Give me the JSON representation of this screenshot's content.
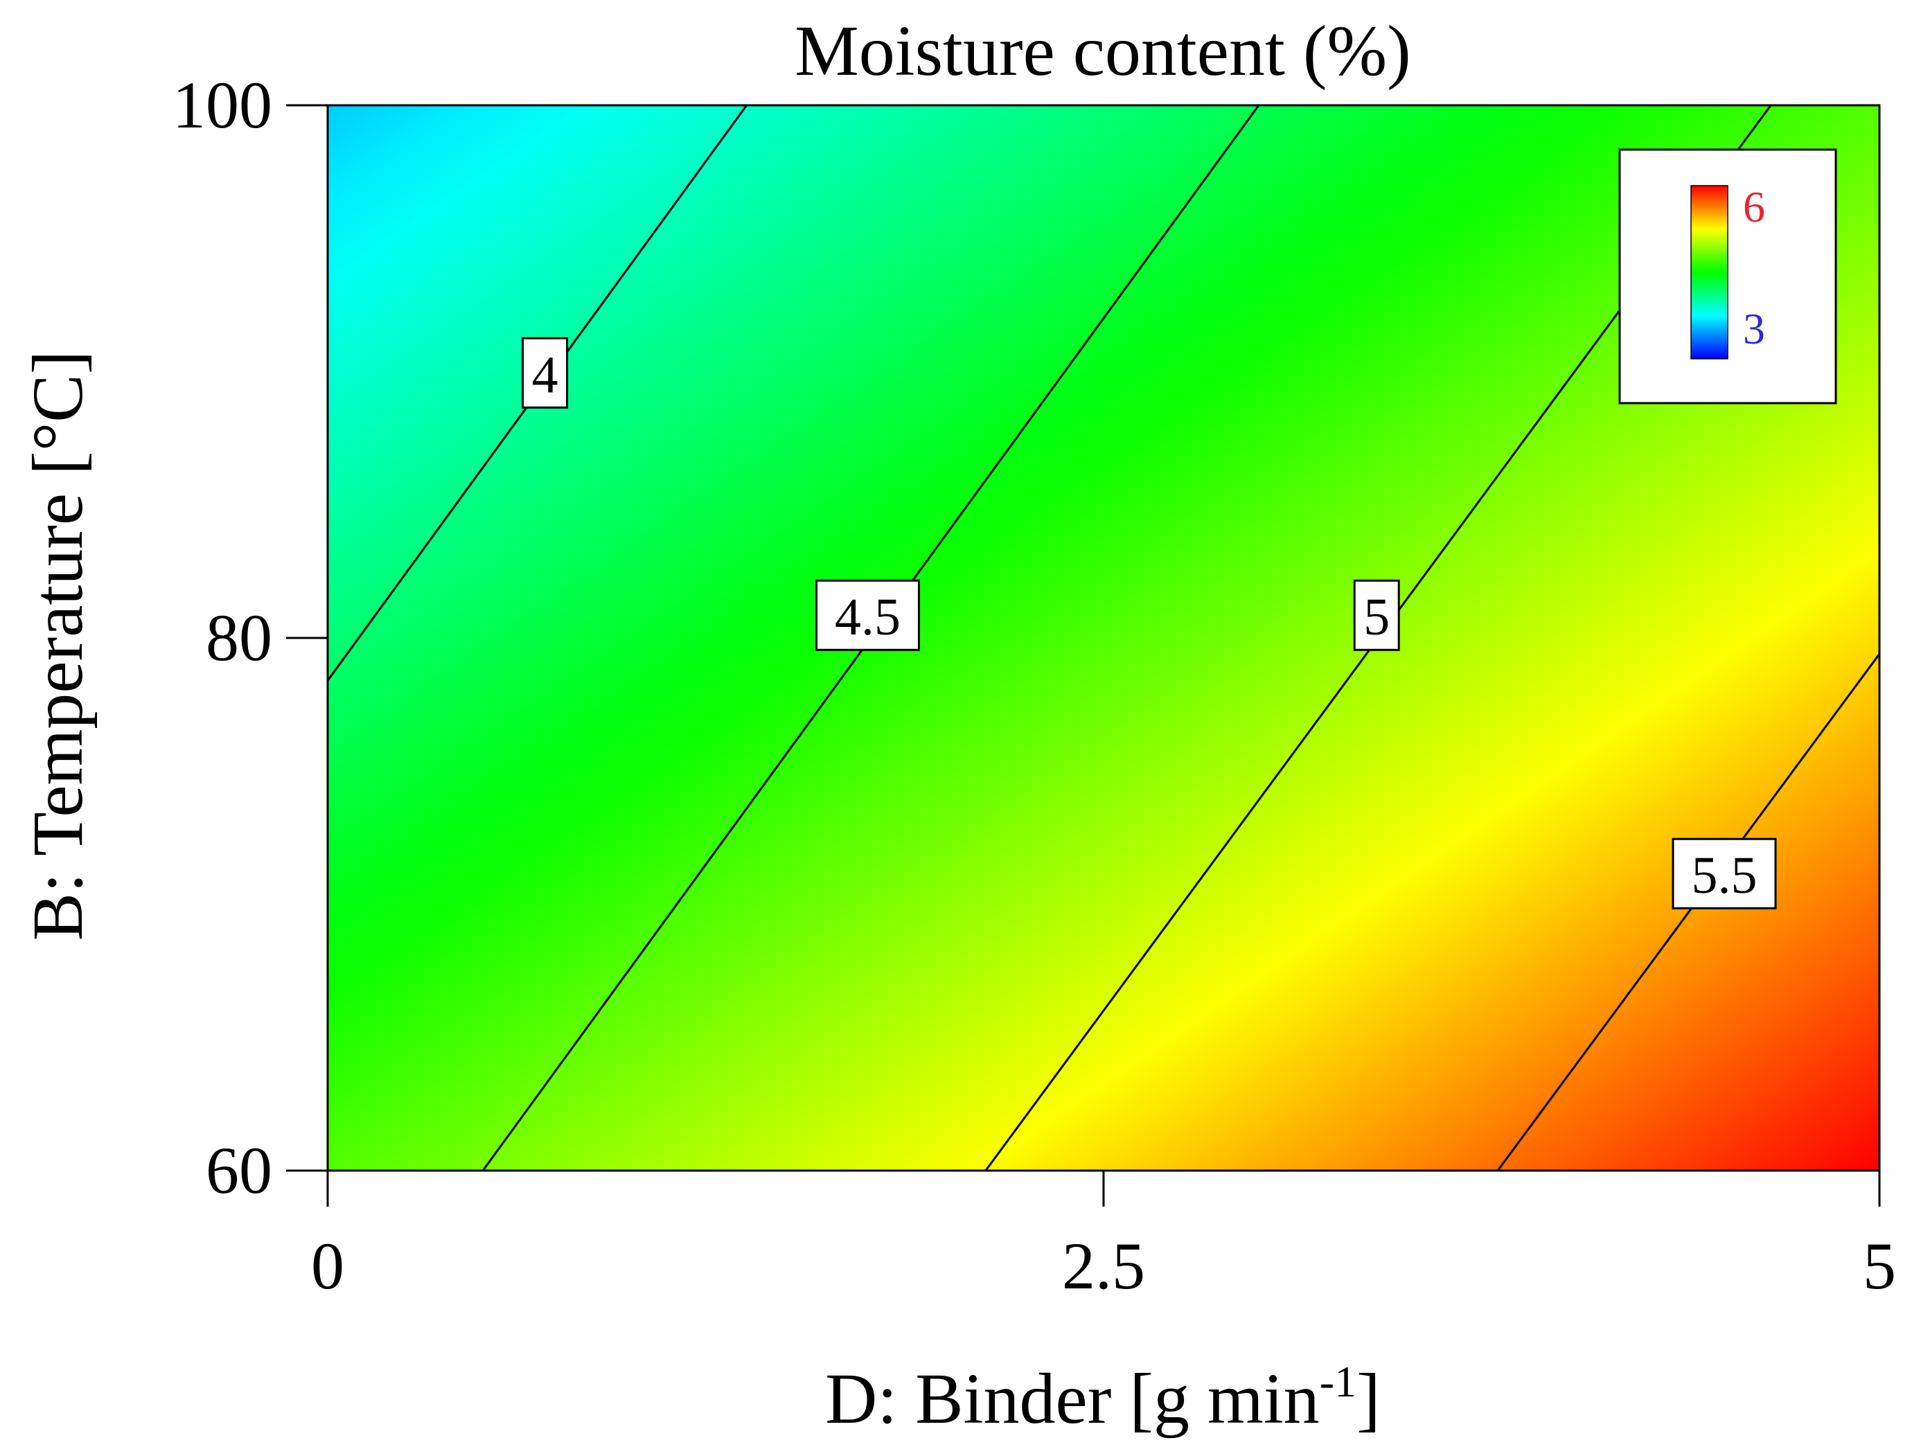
{
  "chart_data": {
    "type": "contour",
    "title": "Moisture content (%)",
    "xlabel": "D: Binder [g min",
    "xlabel_sup": "-1",
    "xlabel_end": "]",
    "ylabel": "B: Temperature [°C]",
    "xlim": [
      0,
      5
    ],
    "ylim": [
      60,
      100
    ],
    "x_ticks": [
      0,
      2.5,
      5
    ],
    "x_tick_labels": [
      "0",
      "2.5",
      "5"
    ],
    "y_ticks": [
      60,
      80,
      100
    ],
    "y_tick_labels": [
      "60",
      "80",
      "100"
    ],
    "grid": false,
    "color_scale": {
      "min": 3,
      "max": 6,
      "min_label": "3",
      "max_label": "6",
      "colors": [
        "#0000ff",
        "#00ffff",
        "#00ff00",
        "#ffff00",
        "#ff0000"
      ],
      "legend_placement": "top-right"
    },
    "surface_samples": [
      {
        "x": 0,
        "y": 100,
        "value": 3.6
      },
      {
        "x": 0,
        "y": 60,
        "value": 4.2
      },
      {
        "x": 5,
        "y": 100,
        "value": 5.15
      },
      {
        "x": 5,
        "y": 60,
        "value": 6.0
      }
    ],
    "contours": [
      {
        "level": 4,
        "label": "4",
        "points": [
          [
            0,
            78.4
          ],
          [
            1.35,
            100
          ]
        ],
        "label_at": [
          0.7,
          89.9
        ]
      },
      {
        "level": 4.5,
        "label": "4.5",
        "points": [
          [
            0.5,
            60
          ],
          [
            3.0,
            100
          ]
        ],
        "label_at": [
          1.74,
          80.8
        ]
      },
      {
        "level": 5,
        "label": "5",
        "points": [
          [
            2.12,
            60
          ],
          [
            4.65,
            100
          ]
        ],
        "label_at": [
          3.38,
          80.8
        ]
      },
      {
        "level": 5.5,
        "label": "5.5",
        "points": [
          [
            3.77,
            60
          ],
          [
            5,
            79.4
          ]
        ],
        "label_at": [
          4.5,
          71.1
        ]
      }
    ]
  }
}
